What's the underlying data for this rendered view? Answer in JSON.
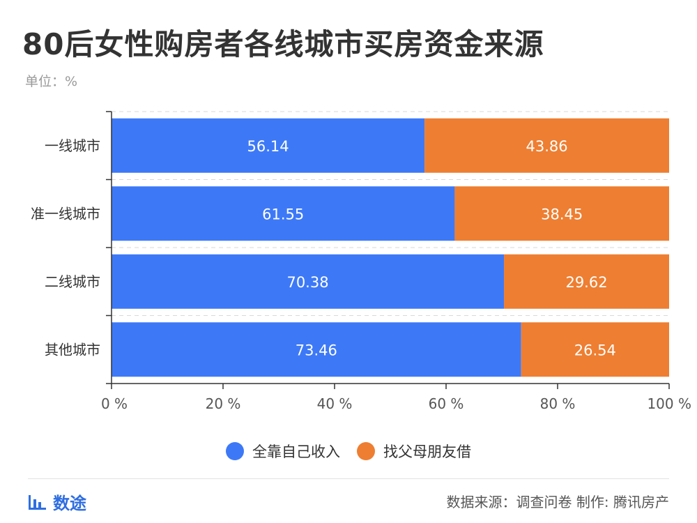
{
  "header": {
    "title": "80后女性购房者各线城市买房资金来源",
    "unit": "单位：%"
  },
  "colors": {
    "series_1": "#3d79f7",
    "series_2": "#ee7e31",
    "grid": "#d9d9d9",
    "axis": "#333333",
    "text": "#333333"
  },
  "chart_data": {
    "type": "bar",
    "orientation": "horizontal",
    "stacked": true,
    "categories": [
      "一线城市",
      "准一线城市",
      "二线城市",
      "其他城市"
    ],
    "series": [
      {
        "name": "全靠自己收入",
        "values": [
          56.14,
          61.55,
          70.38,
          73.46
        ]
      },
      {
        "name": "找父母朋友借",
        "values": [
          43.86,
          38.45,
          29.62,
          26.54
        ]
      }
    ],
    "xlim": [
      0,
      100
    ],
    "x_ticks": [
      "0 %",
      "20 %",
      "40 %",
      "60 %",
      "80 %",
      "100 %"
    ],
    "legend_position": "bottom",
    "grid": "dashed horizontal"
  },
  "footer": {
    "logo_text": "数途",
    "logo_icon": "bar-chart-icon",
    "source": "数据来源：调查问卷  制作: 腾讯房产"
  }
}
